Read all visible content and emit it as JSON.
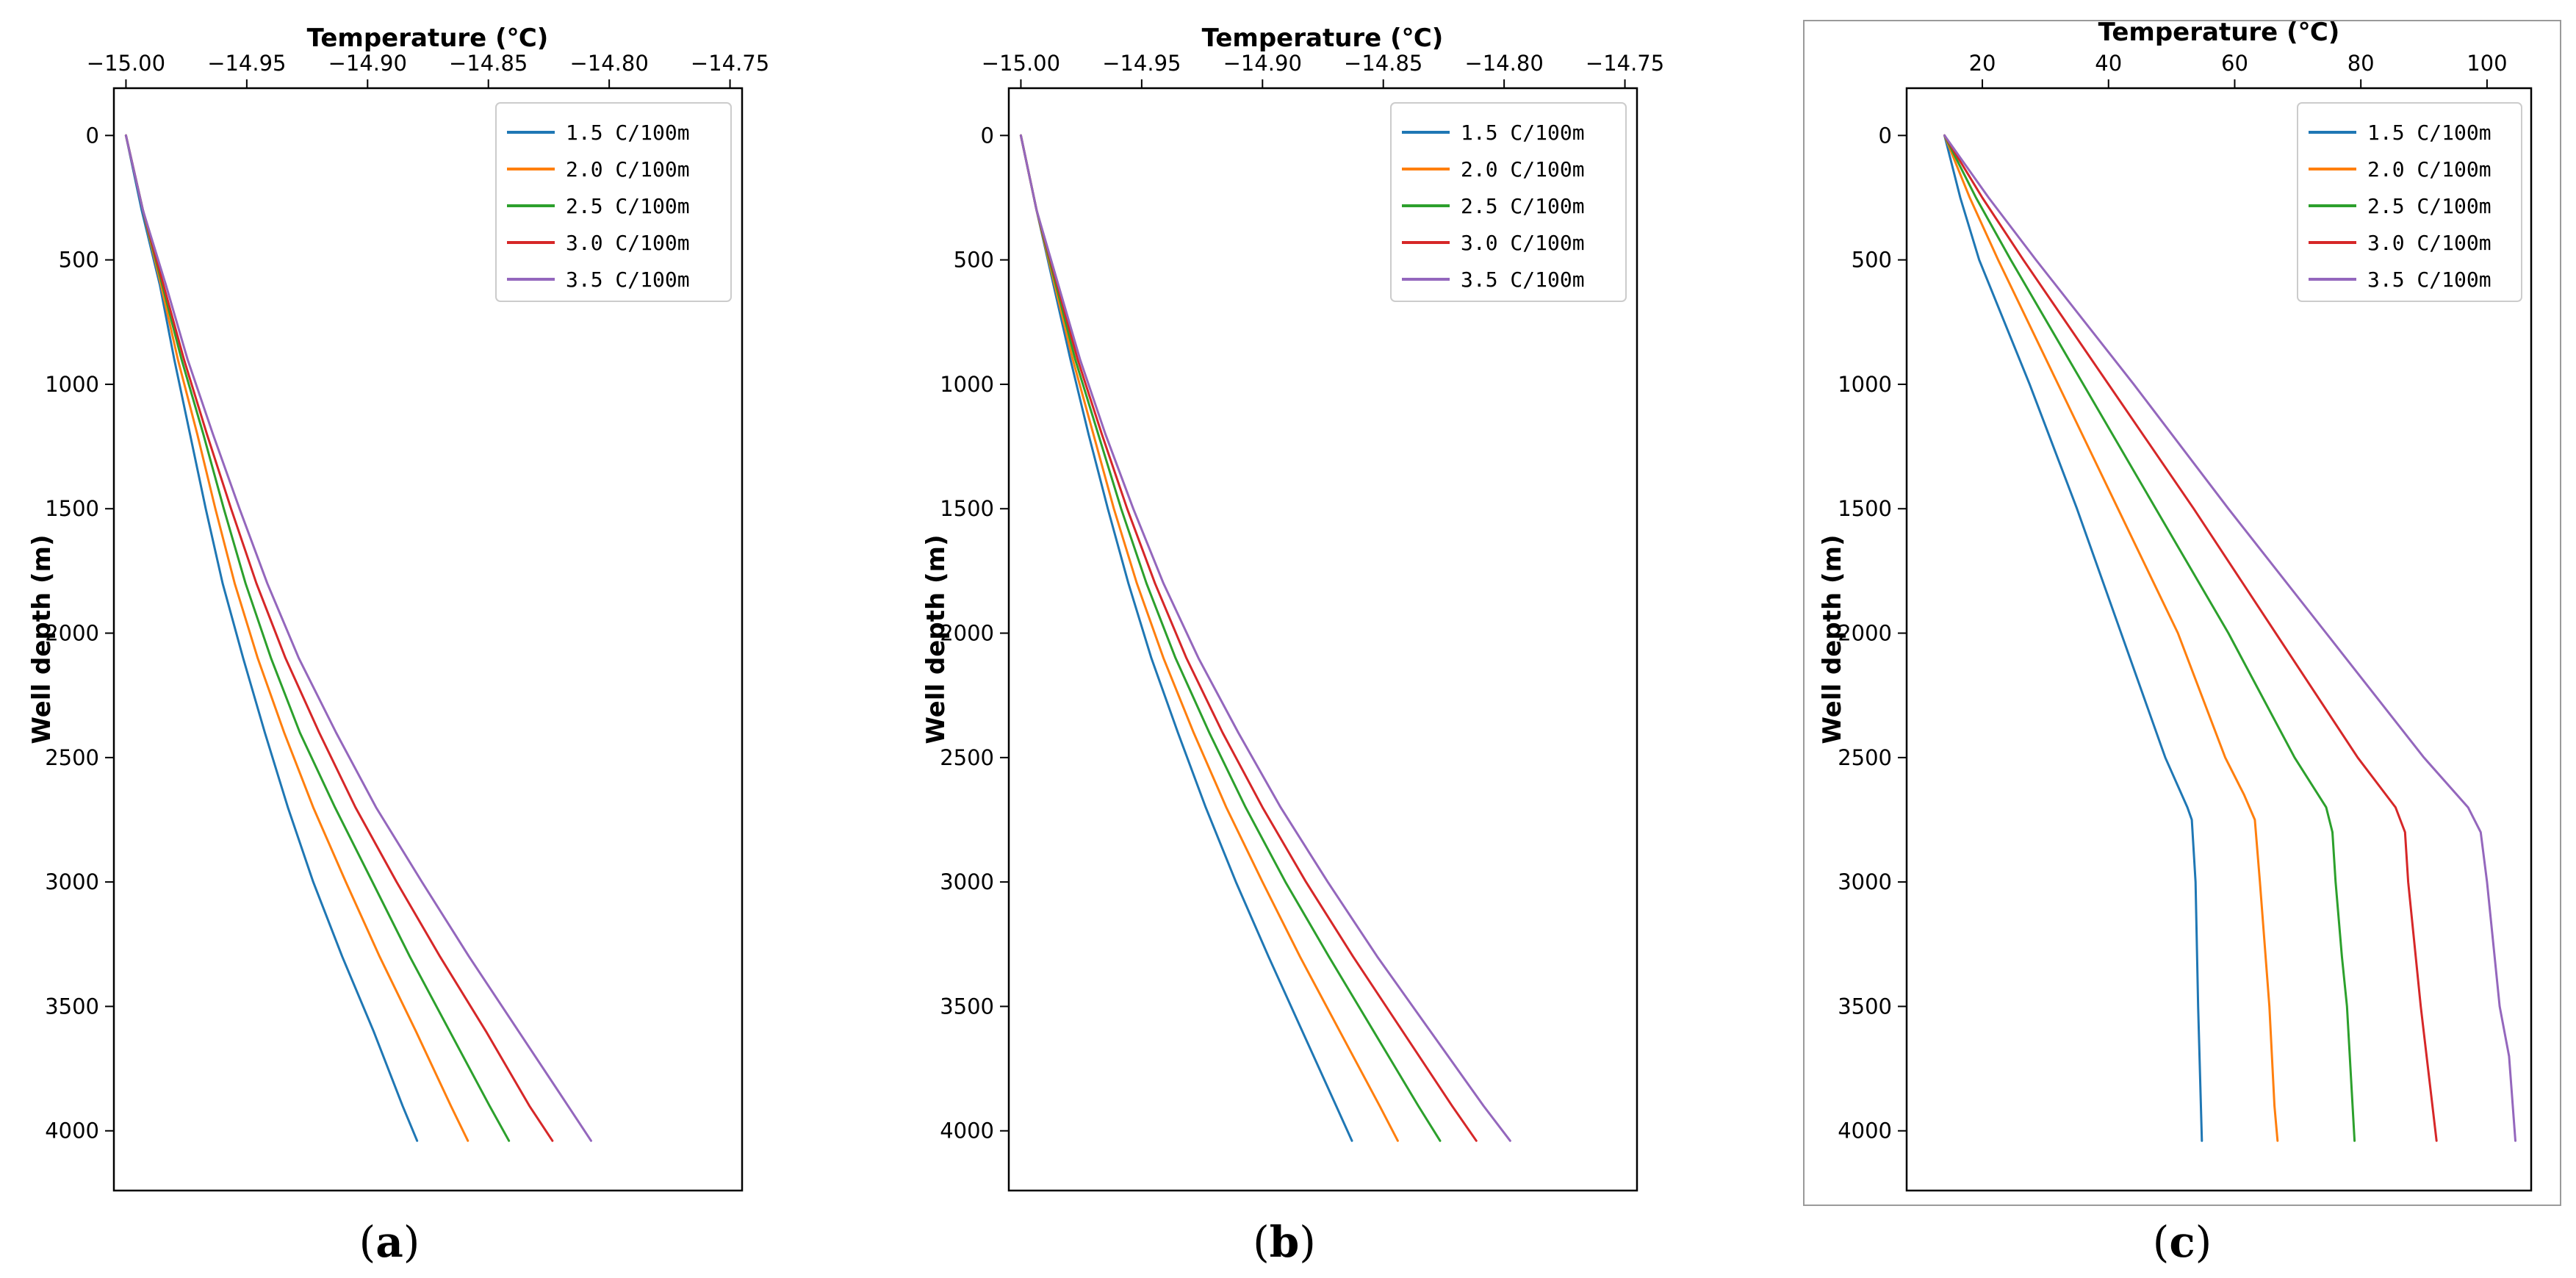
{
  "chart_data": [
    {
      "type": "line",
      "panel_label": "(a)",
      "bold_part": "a",
      "title": "",
      "xlabel": "Temperature (℃)",
      "ylabel": "Well depth (m)",
      "xlim": [
        -15.005,
        -14.745
      ],
      "ylim": [
        4240,
        -190
      ],
      "y_inverted": true,
      "x_axis_position": "top",
      "legend_position": "top-right",
      "grid": false,
      "xticks": [
        -15.0,
        -14.95,
        -14.9,
        -14.85,
        -14.8,
        -14.75
      ],
      "xtick_labels": [
        "−15.00",
        "−14.95",
        "−14.90",
        "−14.85",
        "−14.80",
        "−14.75"
      ],
      "yticks": [
        0,
        500,
        1000,
        1500,
        2000,
        2500,
        3000,
        3500,
        4000
      ],
      "ytick_labels": [
        "0",
        "500",
        "1000",
        "1500",
        "2000",
        "2500",
        "3000",
        "3500",
        "4000"
      ],
      "series": [
        {
          "name": "1.5 C/100m",
          "legend_label": "1.5 C/100m",
          "color": "#1f77b4",
          "depth": [
            0,
            300,
            600,
            900,
            1200,
            1500,
            1800,
            2100,
            2400,
            2700,
            3000,
            3300,
            3600,
            3900,
            4040
          ],
          "temperature": [
            -15.0,
            -14.9935,
            -14.986,
            -14.98,
            -14.9735,
            -14.967,
            -14.96,
            -14.9515,
            -14.9425,
            -14.933,
            -14.9225,
            -14.9105,
            -14.8975,
            -14.8855,
            -14.8795
          ]
        },
        {
          "name": "2.0 C/100m",
          "legend_label": "2.0 C/100m",
          "color": "#ff7f0e",
          "depth": [
            0,
            300,
            600,
            900,
            1200,
            1500,
            1800,
            2100,
            2400,
            2700,
            3000,
            3300,
            3600,
            3900,
            4040
          ],
          "temperature": [
            -15.0,
            -14.993,
            -14.9855,
            -14.9785,
            -14.9705,
            -14.963,
            -14.955,
            -14.9455,
            -14.9345,
            -14.9225,
            -14.909,
            -14.895,
            -14.88,
            -14.8655,
            -14.8585
          ]
        },
        {
          "name": "2.5 C/100m",
          "legend_label": "2.5 C/100m",
          "color": "#2ca02c",
          "depth": [
            0,
            300,
            600,
            900,
            1200,
            1500,
            1800,
            2100,
            2400,
            2700,
            3000,
            3300,
            3600,
            3900,
            4040
          ],
          "temperature": [
            -15.0,
            -14.993,
            -14.985,
            -14.977,
            -14.968,
            -14.9595,
            -14.9505,
            -14.94,
            -14.928,
            -14.9135,
            -14.898,
            -14.8825,
            -14.866,
            -14.8495,
            -14.8415
          ]
        },
        {
          "name": "3.0 C/100m",
          "legend_label": "3.0 C/100m",
          "color": "#d62728",
          "depth": [
            0,
            300,
            600,
            900,
            1200,
            1500,
            1800,
            2100,
            2400,
            2700,
            3000,
            3300,
            3600,
            3900,
            4040
          ],
          "temperature": [
            -15.0,
            -14.993,
            -14.9845,
            -14.976,
            -14.9665,
            -14.9565,
            -14.946,
            -14.934,
            -14.92,
            -14.905,
            -14.888,
            -14.87,
            -14.851,
            -14.833,
            -14.8235
          ]
        },
        {
          "name": "3.5 C/100m",
          "legend_label": "3.5 C/100m",
          "color": "#9467bd",
          "depth": [
            0,
            300,
            600,
            900,
            1200,
            1500,
            1800,
            2100,
            2400,
            2700,
            3000,
            3300,
            3600,
            3900,
            4040
          ],
          "temperature": [
            -15.0,
            -14.993,
            -14.9835,
            -14.9745,
            -14.964,
            -14.953,
            -14.9415,
            -14.9285,
            -14.913,
            -14.8965,
            -14.8775,
            -14.858,
            -14.8375,
            -14.817,
            -14.8075
          ]
        }
      ]
    },
    {
      "type": "line",
      "panel_label": "(b)",
      "bold_part": "b",
      "title": "",
      "xlabel": "Temperature (℃)",
      "ylabel": "Well depth (m)",
      "xlim": [
        -15.005,
        -14.745
      ],
      "ylim": [
        4240,
        -190
      ],
      "y_inverted": true,
      "x_axis_position": "top",
      "legend_position": "top-right",
      "grid": false,
      "xticks": [
        -15.0,
        -14.95,
        -14.9,
        -14.85,
        -14.8,
        -14.75
      ],
      "xtick_labels": [
        "−15.00",
        "−14.95",
        "−14.90",
        "−14.85",
        "−14.80",
        "−14.75"
      ],
      "yticks": [
        0,
        500,
        1000,
        1500,
        2000,
        2500,
        3000,
        3500,
        4000
      ],
      "ytick_labels": [
        "0",
        "500",
        "1000",
        "1500",
        "2000",
        "2500",
        "3000",
        "3500",
        "4000"
      ],
      "series": [
        {
          "name": "1.5 C/100m",
          "legend_label": "1.5 C/100m",
          "color": "#1f77b4",
          "depth": [
            0,
            300,
            600,
            900,
            1200,
            1500,
            1800,
            2100,
            2400,
            2700,
            3000,
            3300,
            3600,
            3900,
            4040
          ],
          "temperature": [
            -15.0,
            -14.9935,
            -14.9865,
            -14.9795,
            -14.972,
            -14.964,
            -14.9555,
            -14.946,
            -14.935,
            -14.9235,
            -14.911,
            -14.8975,
            -14.8835,
            -14.8695,
            -14.863
          ]
        },
        {
          "name": "2.0 C/100m",
          "legend_label": "2.0 C/100m",
          "color": "#ff7f0e",
          "depth": [
            0,
            300,
            600,
            900,
            1200,
            1500,
            1800,
            2100,
            2400,
            2700,
            3000,
            3300,
            3600,
            3900,
            4040
          ],
          "temperature": [
            -15.0,
            -14.9935,
            -14.986,
            -14.9785,
            -14.97,
            -14.9615,
            -14.952,
            -14.941,
            -14.9285,
            -14.915,
            -14.9,
            -14.8845,
            -14.868,
            -14.8515,
            -14.844
          ]
        },
        {
          "name": "2.5 C/100m",
          "legend_label": "2.5 C/100m",
          "color": "#2ca02c",
          "depth": [
            0,
            300,
            600,
            900,
            1200,
            1500,
            1800,
            2100,
            2400,
            2700,
            3000,
            3300,
            3600,
            3900,
            4040
          ],
          "temperature": [
            -15.0,
            -14.9935,
            -14.9855,
            -14.9775,
            -14.968,
            -14.9585,
            -14.948,
            -14.936,
            -14.922,
            -14.907,
            -14.8905,
            -14.8725,
            -14.854,
            -14.8355,
            -14.8265
          ]
        },
        {
          "name": "3.0 C/100m",
          "legend_label": "3.0 C/100m",
          "color": "#d62728",
          "depth": [
            0,
            300,
            600,
            900,
            1200,
            1500,
            1800,
            2100,
            2400,
            2700,
            3000,
            3300,
            3600,
            3900,
            4040
          ],
          "temperature": [
            -15.0,
            -14.9935,
            -14.985,
            -14.9765,
            -14.9665,
            -14.956,
            -14.9445,
            -14.9315,
            -14.9165,
            -14.9,
            -14.882,
            -14.8625,
            -14.842,
            -14.8215,
            -14.8115
          ]
        },
        {
          "name": "3.5 C/100m",
          "legend_label": "3.5 C/100m",
          "color": "#9467bd",
          "depth": [
            0,
            300,
            600,
            900,
            1200,
            1500,
            1800,
            2100,
            2400,
            2700,
            3000,
            3300,
            3600,
            3900,
            4040
          ],
          "temperature": [
            -15.0,
            -14.9935,
            -14.9845,
            -14.9755,
            -14.965,
            -14.9535,
            -14.941,
            -14.9265,
            -14.91,
            -14.8925,
            -14.873,
            -14.8525,
            -14.8305,
            -14.8085,
            -14.7975
          ]
        }
      ]
    },
    {
      "type": "line",
      "panel_label": "(c)",
      "bold_part": "c",
      "title": "",
      "xlabel": "Temperature (℃)",
      "ylabel": "Well depth (m)",
      "xlim": [
        8,
        107
      ],
      "ylim": [
        4240,
        -190
      ],
      "y_inverted": true,
      "x_axis_position": "top",
      "legend_position": "top-right",
      "grid": false,
      "xticks": [
        20,
        40,
        60,
        80,
        100
      ],
      "xtick_labels": [
        "20",
        "40",
        "60",
        "80",
        "100"
      ],
      "yticks": [
        0,
        500,
        1000,
        1500,
        2000,
        2500,
        3000,
        3500,
        4000
      ],
      "ytick_labels": [
        "0",
        "500",
        "1000",
        "1500",
        "2000",
        "2500",
        "3000",
        "3500",
        "4000"
      ],
      "series": [
        {
          "name": "1.5 C/100m",
          "legend_label": "1.5 C/100m",
          "color": "#1f77b4",
          "depth": [
            0,
            250,
            500,
            1000,
            1500,
            2000,
            2500,
            2700,
            2750,
            3000,
            3500,
            4040
          ],
          "temperature": [
            14,
            16.5,
            19.5,
            27.5,
            35,
            42,
            49,
            52.5,
            53.2,
            53.8,
            54.2,
            54.8
          ]
        },
        {
          "name": "2.0 C/100m",
          "legend_label": "2.0 C/100m",
          "color": "#ff7f0e",
          "depth": [
            0,
            250,
            500,
            1000,
            1500,
            2000,
            2500,
            2650,
            2750,
            3000,
            3500,
            3900,
            4040
          ],
          "temperature": [
            14,
            18,
            22.5,
            32,
            41.5,
            51,
            58.5,
            61.5,
            63.2,
            64,
            65.5,
            66.3,
            66.8
          ]
        },
        {
          "name": "2.5 C/100m",
          "legend_label": "2.5 C/100m",
          "color": "#2ca02c",
          "depth": [
            0,
            250,
            500,
            1000,
            1500,
            2000,
            2500,
            2700,
            2800,
            3000,
            3300,
            3500,
            4040
          ],
          "temperature": [
            14,
            19,
            24.5,
            36,
            47.5,
            59,
            69.5,
            74.5,
            75.5,
            76,
            77,
            77.8,
            79
          ]
        },
        {
          "name": "3.0 C/100m",
          "legend_label": "3.0 C/100m",
          "color": "#d62728",
          "depth": [
            0,
            250,
            500,
            1000,
            1500,
            2000,
            2500,
            2700,
            2800,
            3000,
            3500,
            4040
          ],
          "temperature": [
            14,
            20,
            26.5,
            40,
            53.5,
            66.5,
            79.5,
            85.5,
            87,
            87.5,
            89.5,
            92
          ]
        },
        {
          "name": "3.5 C/100m",
          "legend_label": "3.5 C/100m",
          "color": "#9467bd",
          "depth": [
            0,
            250,
            500,
            1000,
            1500,
            2000,
            2500,
            2700,
            2800,
            3000,
            3500,
            3700,
            4040
          ],
          "temperature": [
            14,
            21,
            28.5,
            44,
            59,
            74.5,
            90,
            97,
            99,
            100,
            102,
            103.5,
            104.5
          ]
        }
      ]
    }
  ]
}
